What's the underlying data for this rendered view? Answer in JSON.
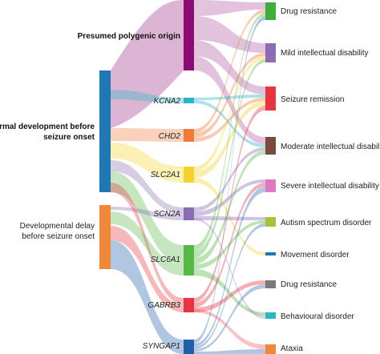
{
  "diagram": {
    "type": "sankey",
    "colors": {
      "origin_polygenic": "#8b0a73",
      "origin_normal": "#1f77b4",
      "origin_delay": "#f0883a",
      "KCNA2": "#27b7c9",
      "CHD2": "#f07b3a",
      "SLC2A1": "#f5d32a",
      "SCN2A": "#8a6db3",
      "SLC6A1": "#58b847",
      "GABRB3": "#e8343e",
      "SYNGAP1": "#1f5fa8",
      "out_drug1": "#3fae3a",
      "out_mild": "#8a6db3",
      "out_remission": "#e8343e",
      "out_moderate": "#7a4a3a",
      "out_severe": "#de78c0",
      "out_autism": "#a8c23a",
      "out_movement": "#1f77b4",
      "out_drug2": "#7a7a7a",
      "out_behavioural": "#27b7c9",
      "out_ataxia": "#f0883a"
    },
    "origins": [
      {
        "id": "polygenic",
        "label": "Presumed polygenic origin"
      },
      {
        "id": "normal",
        "label_lines": [
          "Normal development before",
          "seizure onset"
        ]
      },
      {
        "id": "delay",
        "label_lines": [
          "Developmental delay",
          "before seizure onset"
        ]
      }
    ],
    "genes": [
      {
        "id": "KCNA2",
        "label": "KCNA2"
      },
      {
        "id": "CHD2",
        "label": "CHD2"
      },
      {
        "id": "SLC2A1",
        "label": "SLC2A1"
      },
      {
        "id": "SCN2A",
        "label": "SCN2A"
      },
      {
        "id": "SLC6A1",
        "label": "SLC6A1"
      },
      {
        "id": "GABRB3",
        "label": "GABRB3"
      },
      {
        "id": "SYNGAP1",
        "label": "SYNGAP1"
      }
    ],
    "outcomes": [
      {
        "id": "drug1",
        "label": "Drug resistance"
      },
      {
        "id": "mild",
        "label": "Mild intellectual disability"
      },
      {
        "id": "remission",
        "label": "Seizure remission"
      },
      {
        "id": "moderate",
        "label": "Moderate intellectual disability"
      },
      {
        "id": "severe",
        "label": "Severe intellectual disability"
      },
      {
        "id": "autism",
        "label": "Autism spectrum disorder"
      },
      {
        "id": "movement",
        "label": "Movement disorder"
      },
      {
        "id": "drug2",
        "label": "Drug resistance"
      },
      {
        "id": "behavioural",
        "label": "Behavioural disorder"
      },
      {
        "id": "ataxia",
        "label": "Ataxia"
      }
    ]
  }
}
